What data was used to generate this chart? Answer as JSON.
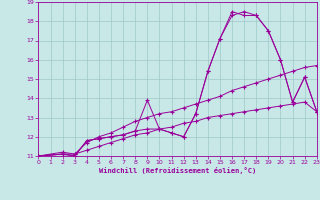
{
  "xlabel": "Windchill (Refroidissement éolien,°C)",
  "xlim": [
    0,
    23
  ],
  "ylim": [
    11,
    19
  ],
  "yticks": [
    11,
    12,
    13,
    14,
    15,
    16,
    17,
    18,
    19
  ],
  "xticks": [
    0,
    1,
    2,
    3,
    4,
    5,
    6,
    7,
    8,
    9,
    10,
    11,
    12,
    13,
    14,
    15,
    16,
    17,
    18,
    19,
    20,
    21,
    22,
    23
  ],
  "bg_color": "#c8e8e8",
  "line_color": "#990099",
  "grid_color": "#a0c8c8",
  "line1_x": [
    0,
    2,
    3,
    4,
    5,
    6,
    7,
    8,
    9,
    10,
    11,
    12,
    13,
    14,
    15,
    16,
    17,
    18,
    19,
    20,
    21,
    22,
    23
  ],
  "line1_y": [
    11.0,
    11.1,
    11.1,
    11.3,
    11.5,
    11.7,
    11.9,
    12.1,
    12.2,
    12.4,
    12.5,
    12.7,
    12.8,
    13.0,
    13.1,
    13.2,
    13.3,
    13.4,
    13.5,
    13.6,
    13.7,
    13.8,
    13.3
  ],
  "line2_x": [
    0,
    2,
    3,
    4,
    5,
    6,
    7,
    8,
    9,
    10,
    11,
    12,
    13,
    14,
    15,
    16,
    17,
    18,
    19,
    20,
    21,
    22,
    23
  ],
  "line2_y": [
    11.0,
    11.2,
    11.1,
    11.7,
    12.0,
    12.2,
    12.5,
    12.8,
    13.0,
    13.2,
    13.3,
    13.5,
    13.7,
    13.9,
    14.1,
    14.4,
    14.6,
    14.8,
    15.0,
    15.2,
    15.4,
    15.6,
    15.7
  ],
  "line3_x": [
    0,
    2,
    3,
    4,
    5,
    6,
    7,
    8,
    9,
    10,
    11,
    12,
    13,
    14,
    15,
    16,
    17,
    18,
    19,
    20,
    21,
    22,
    23
  ],
  "line3_y": [
    11.0,
    11.1,
    11.0,
    11.8,
    11.9,
    12.0,
    12.1,
    12.3,
    13.9,
    12.4,
    12.2,
    12.0,
    13.2,
    15.4,
    17.1,
    18.3,
    18.5,
    18.3,
    17.5,
    16.0,
    13.8,
    15.1,
    13.3
  ],
  "line4_x": [
    0,
    2,
    3,
    4,
    5,
    6,
    7,
    8,
    9,
    10,
    11,
    12,
    13,
    14,
    15,
    16,
    17,
    18,
    19,
    20,
    21,
    22,
    23
  ],
  "line4_y": [
    11.0,
    11.1,
    11.0,
    11.8,
    11.9,
    12.0,
    12.1,
    12.3,
    12.4,
    12.4,
    12.2,
    12.0,
    13.2,
    15.4,
    17.1,
    18.5,
    18.3,
    18.3,
    17.5,
    16.0,
    13.8,
    15.1,
    13.3
  ]
}
